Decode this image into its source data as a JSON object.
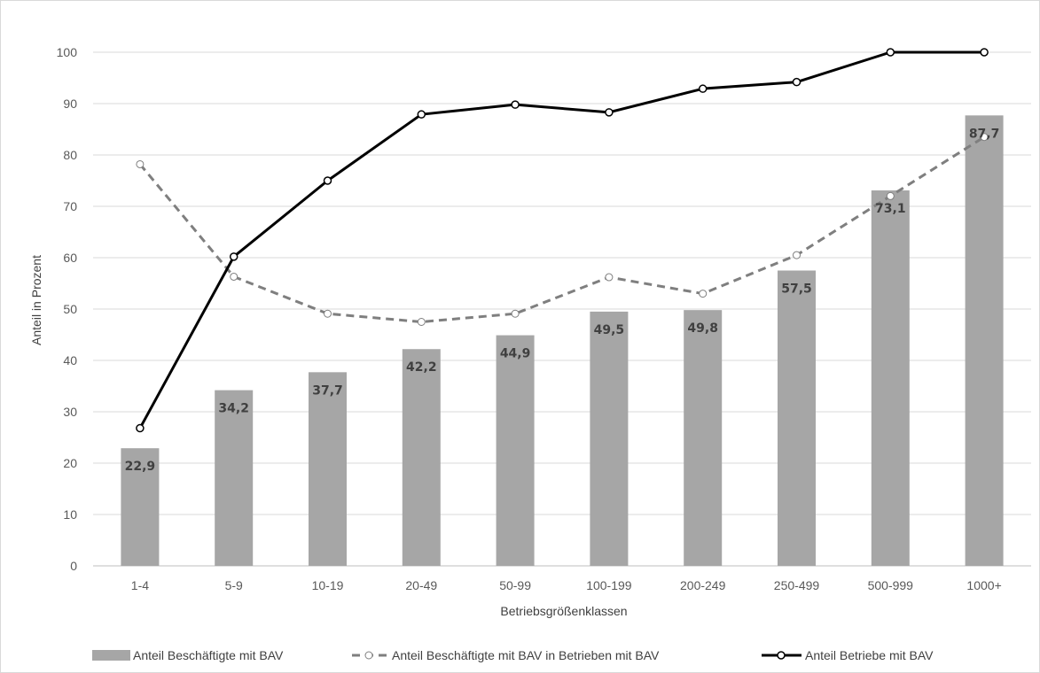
{
  "chart_data": {
    "type": "bar",
    "categories": [
      "1-4",
      "5-9",
      "10-19",
      "20-49",
      "50-99",
      "100-199",
      "200-249",
      "250-499",
      "500-999",
      "1000+"
    ],
    "xlabel": "Betriebsgrößenklassen",
    "ylabel": "Anteil in Prozent",
    "ylim": [
      0,
      100
    ],
    "yticks": [
      0,
      10,
      20,
      30,
      40,
      50,
      60,
      70,
      80,
      90,
      100
    ],
    "grid": true,
    "legend": "bottom",
    "series": [
      {
        "name": "Anteil Beschäftigte mit BAV",
        "kind": "bar",
        "color": "#a6a6a6",
        "values": [
          22.9,
          34.2,
          37.7,
          42.2,
          44.9,
          49.5,
          49.8,
          57.5,
          73.1,
          87.7
        ],
        "labels": [
          "22,9",
          "34,2",
          "37,7",
          "42,2",
          "44,9",
          "49,5",
          "49,8",
          "57,5",
          "73,1",
          "87,7"
        ]
      },
      {
        "name": "Anteil Beschäftigte mit BAV in Betrieben mit BAV",
        "kind": "line-dashed",
        "color": "#7f7f7f",
        "values": [
          78.2,
          56.3,
          49.1,
          47.5,
          49.1,
          56.2,
          53.0,
          60.5,
          72.0,
          83.5
        ]
      },
      {
        "name": "Anteil Betriebe mit BAV",
        "kind": "line",
        "color": "#000000",
        "values": [
          26.8,
          60.2,
          75.0,
          87.9,
          89.8,
          88.3,
          92.9,
          94.2,
          100.0,
          100.0
        ]
      }
    ]
  }
}
